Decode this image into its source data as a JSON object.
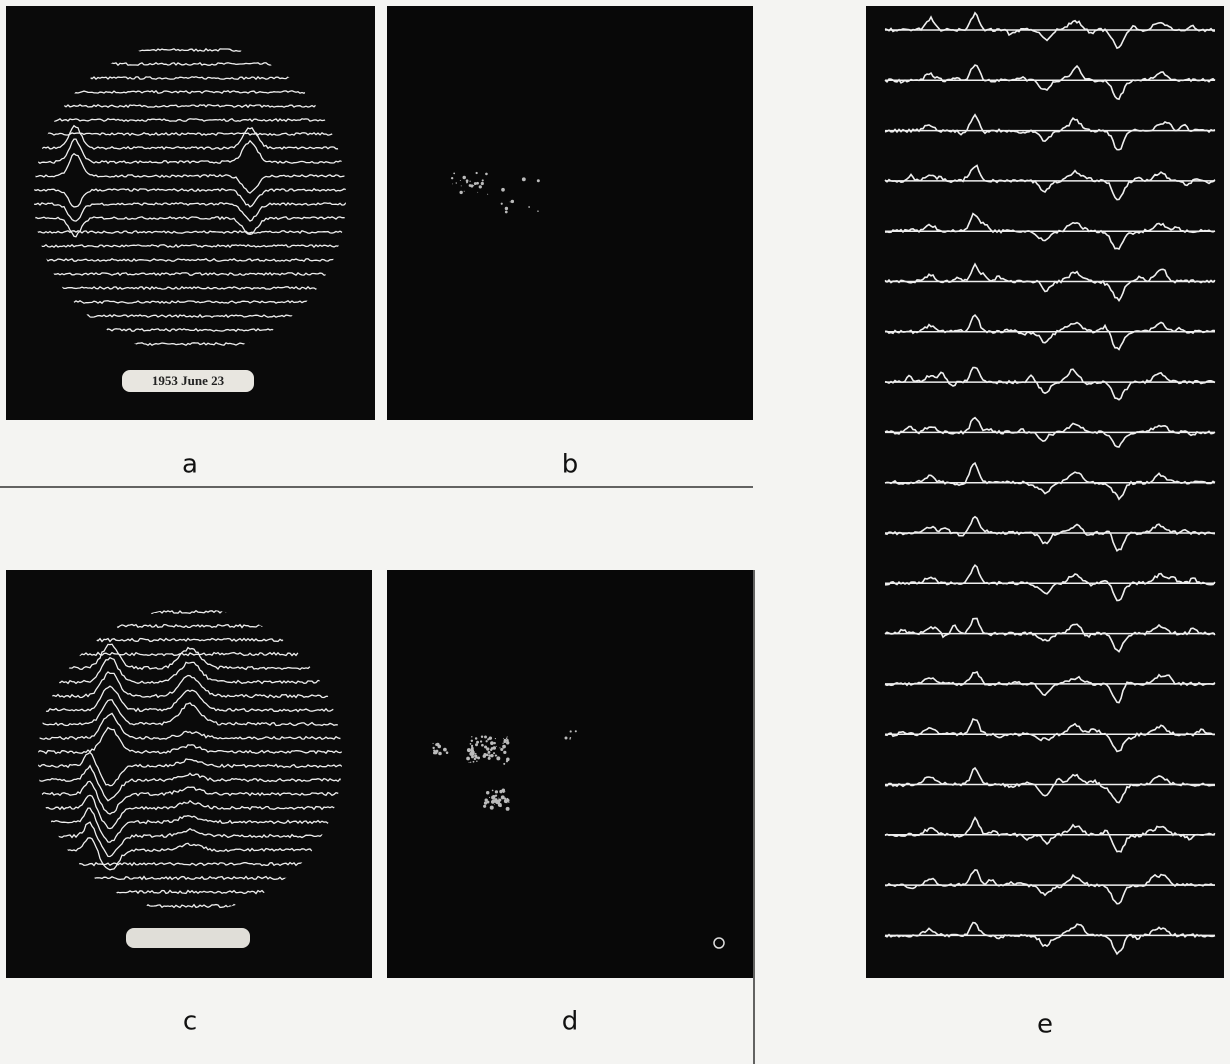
{
  "figure": {
    "panels": [
      {
        "label": "a",
        "stamp": "1953 June 23"
      },
      {
        "label": "b"
      },
      {
        "label": "c"
      },
      {
        "label": "d"
      },
      {
        "label": "e"
      }
    ]
  }
}
